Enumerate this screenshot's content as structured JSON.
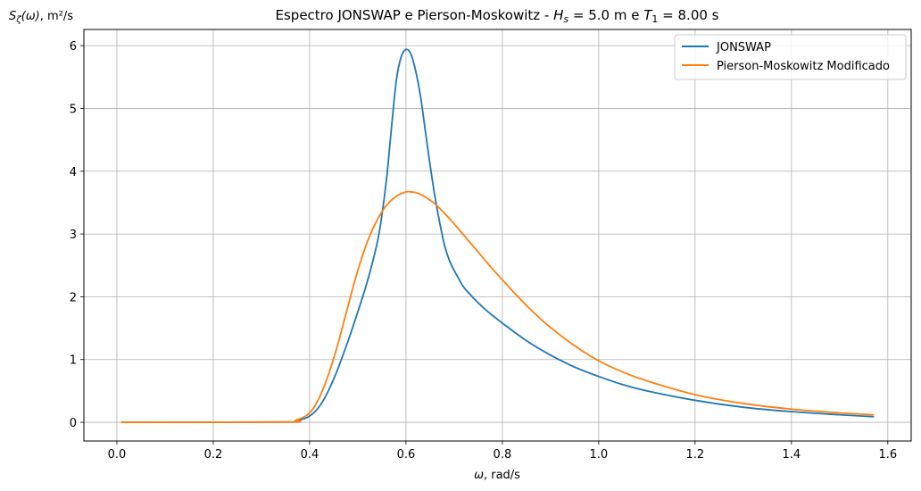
{
  "chart_data": {
    "type": "line",
    "title_parts": {
      "prefix": "Espectro JONSWAP e Pierson-Moskowitz - ",
      "hs_symbol": "H",
      "hs_sub": "s",
      "hs_value": " = 5.0 m e ",
      "t1_symbol": "T",
      "t1_sub": "1",
      "t1_value": " = 8.00 s"
    },
    "xlabel_parts": {
      "symbol": "ω",
      "unit": ", rad/s"
    },
    "ylabel_parts": {
      "symbol": "S",
      "sub": "ζ",
      "arg": "(ω)",
      "unit": ", m²/s"
    },
    "xlim": [
      -0.0685,
      1.6485
    ],
    "ylim": [
      -0.298,
      6.258
    ],
    "xticks": [
      0.0,
      0.2,
      0.4,
      0.6,
      0.8,
      1.0,
      1.2,
      1.4,
      1.6
    ],
    "xtick_labels": [
      "0.0",
      "0.2",
      "0.4",
      "0.6",
      "0.8",
      "1.0",
      "1.2",
      "1.4",
      "1.6"
    ],
    "yticks": [
      0,
      1,
      2,
      3,
      4,
      5,
      6
    ],
    "ytick_labels": [
      "0",
      "1",
      "2",
      "3",
      "4",
      "5",
      "6"
    ],
    "grid": true,
    "legend_position": "top-right",
    "series": [
      {
        "name": "JONSWAP",
        "color": "#1f77b4",
        "x": [
          0.01,
          0.35,
          0.37,
          0.39,
          0.4,
          0.41,
          0.42,
          0.43,
          0.44,
          0.45,
          0.46,
          0.48,
          0.5,
          0.52,
          0.54,
          0.55,
          0.56,
          0.57,
          0.58,
          0.59,
          0.6,
          0.61,
          0.62,
          0.63,
          0.64,
          0.65,
          0.66,
          0.67,
          0.68,
          0.69,
          0.7,
          0.71,
          0.72,
          0.74,
          0.76,
          0.78,
          0.8,
          0.85,
          0.9,
          0.95,
          1.0,
          1.05,
          1.1,
          1.2,
          1.3,
          1.4,
          1.5,
          1.57
        ],
        "y": [
          0.0,
          0.003,
          0.02,
          0.06,
          0.1,
          0.16,
          0.25,
          0.37,
          0.52,
          0.69,
          0.88,
          1.3,
          1.76,
          2.25,
          2.85,
          3.3,
          3.9,
          4.7,
          5.45,
          5.82,
          5.94,
          5.87,
          5.6,
          5.2,
          4.65,
          4.1,
          3.6,
          3.18,
          2.82,
          2.58,
          2.42,
          2.28,
          2.15,
          1.98,
          1.83,
          1.7,
          1.58,
          1.3,
          1.07,
          0.88,
          0.73,
          0.6,
          0.5,
          0.35,
          0.24,
          0.17,
          0.12,
          0.09
        ]
      },
      {
        "name": "Pierson-Moskowitz Modificado",
        "color": "#ff7f0e",
        "x": [
          0.01,
          0.35,
          0.37,
          0.39,
          0.4,
          0.41,
          0.42,
          0.43,
          0.44,
          0.45,
          0.46,
          0.48,
          0.5,
          0.52,
          0.54,
          0.56,
          0.58,
          0.6,
          0.61,
          0.62,
          0.63,
          0.64,
          0.66,
          0.68,
          0.7,
          0.72,
          0.74,
          0.76,
          0.78,
          0.8,
          0.85,
          0.9,
          0.95,
          1.0,
          1.05,
          1.1,
          1.2,
          1.3,
          1.4,
          1.5,
          1.57
        ],
        "y": [
          0.0,
          0.005,
          0.03,
          0.09,
          0.15,
          0.25,
          0.39,
          0.57,
          0.78,
          1.02,
          1.28,
          1.86,
          2.42,
          2.88,
          3.22,
          3.46,
          3.6,
          3.67,
          3.67,
          3.66,
          3.63,
          3.59,
          3.48,
          3.33,
          3.16,
          2.98,
          2.8,
          2.62,
          2.44,
          2.27,
          1.86,
          1.51,
          1.22,
          0.98,
          0.8,
          0.66,
          0.44,
          0.3,
          0.21,
          0.15,
          0.12
        ]
      }
    ]
  }
}
